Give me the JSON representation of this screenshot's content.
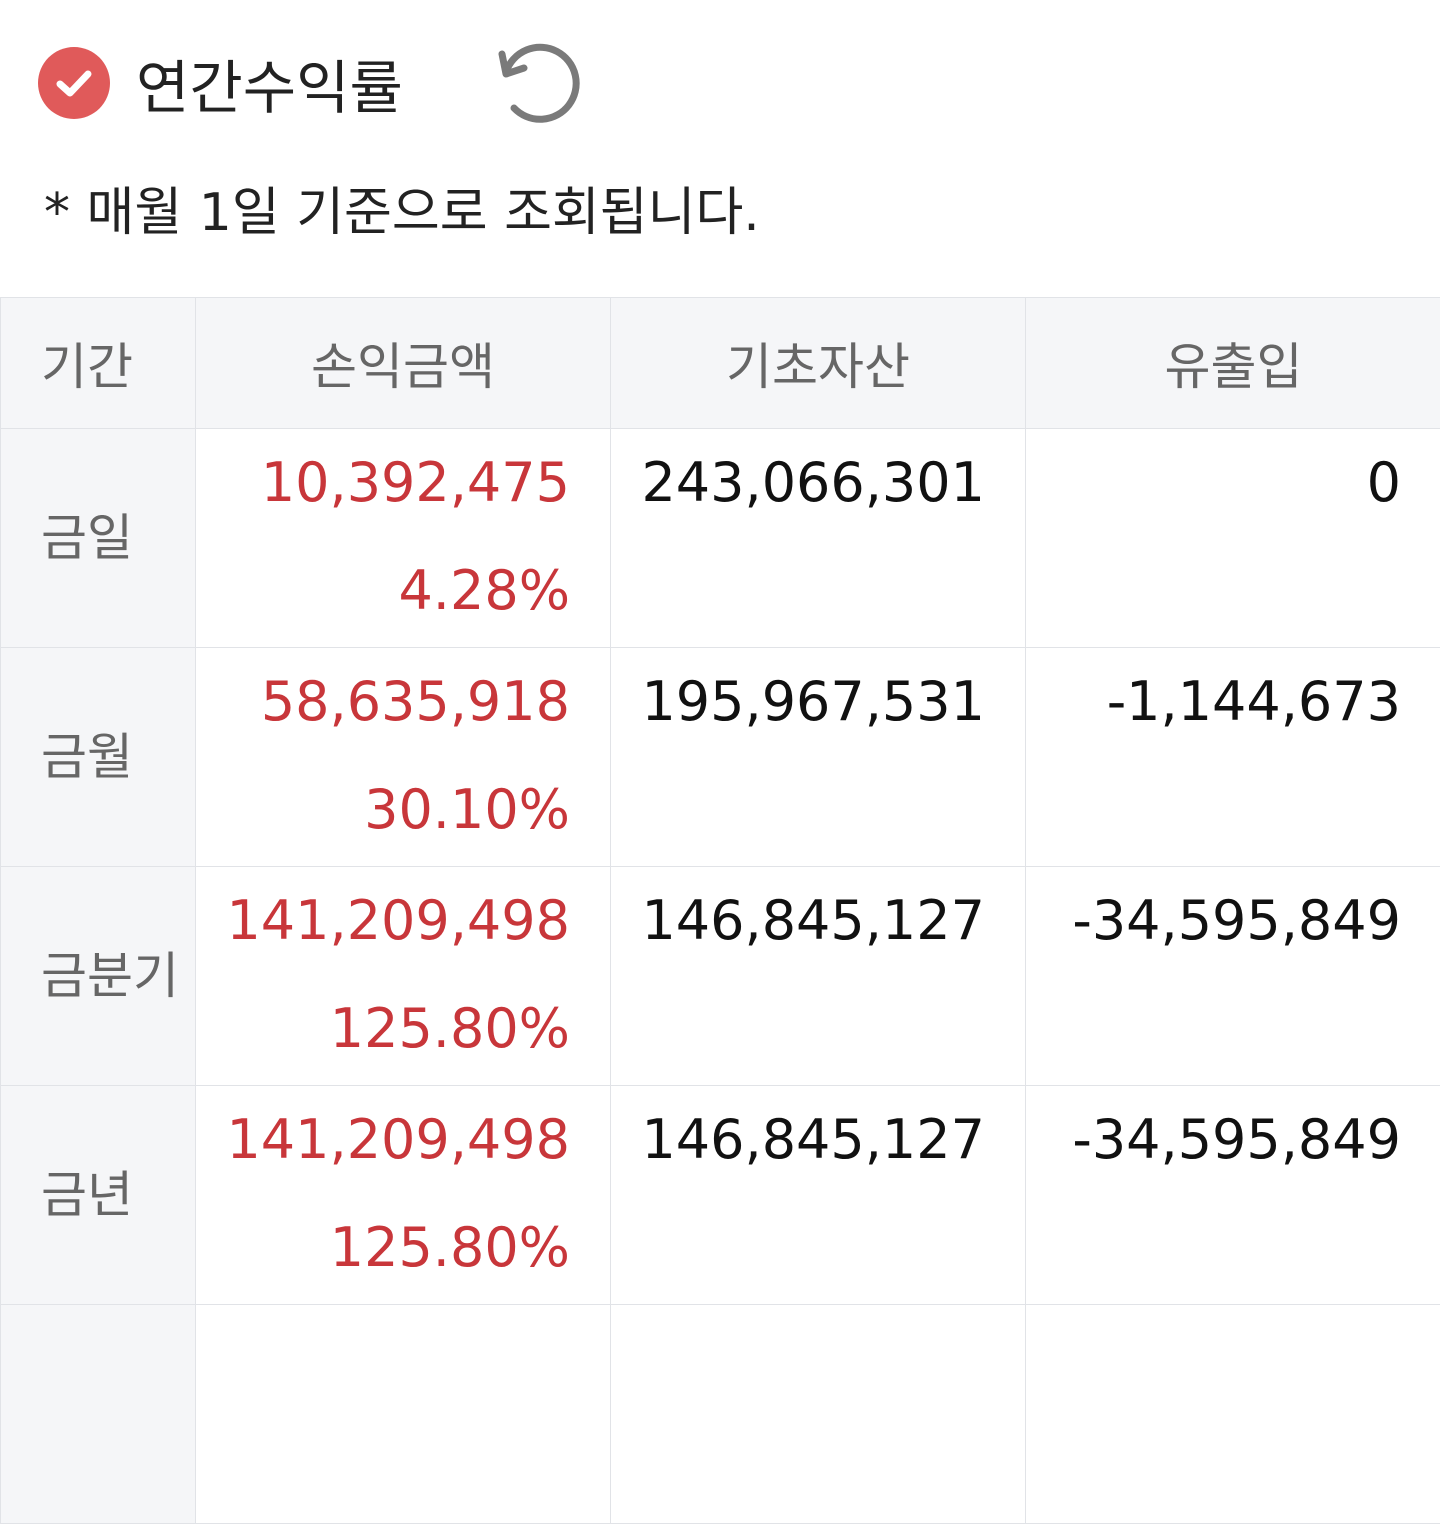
{
  "header": {
    "title": "연간수익률",
    "note": "* 매월 1일 기준으로 조회됩니다."
  },
  "table": {
    "columns": [
      "기간",
      "손익금액",
      "기초자산",
      "유출입"
    ],
    "rows": [
      {
        "period": "금일",
        "profit": "10,392,475",
        "rate": "4.28%",
        "base": "243,066,301",
        "flow": "0"
      },
      {
        "period": "금월",
        "profit": "58,635,918",
        "rate": "30.10%",
        "base": "195,967,531",
        "flow": "-1,144,673"
      },
      {
        "period": "금분기",
        "profit": "141,209,498",
        "rate": "125.80%",
        "base": "146,845,127",
        "flow": "-34,595,849"
      },
      {
        "period": "금년",
        "profit": "141,209,498",
        "rate": "125.80%",
        "base": "146,845,127",
        "flow": "-34,595,849"
      }
    ]
  }
}
